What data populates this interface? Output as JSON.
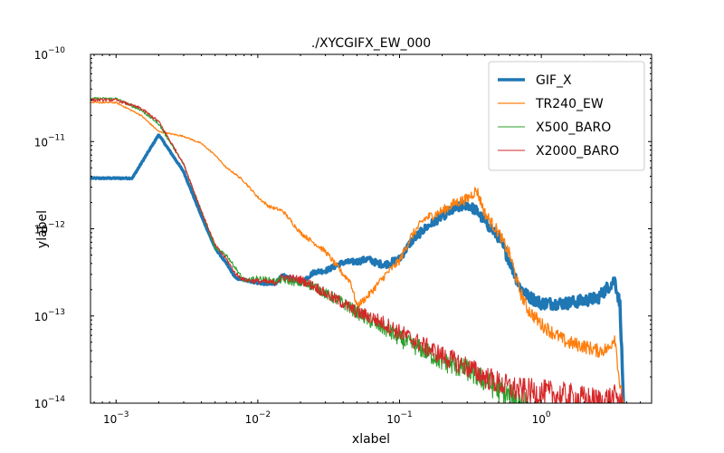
{
  "chart_data": {
    "type": "line",
    "title": "./XYCGIFX_EW_000",
    "xlabel": "xlabel",
    "ylabel": "ylabel",
    "xscale": "log",
    "yscale": "log",
    "xlim": [
      0.00066,
      6
    ],
    "ylim": [
      1e-14,
      1e-10
    ],
    "grid": false,
    "legend_loc": "upper right",
    "x_ticks": [
      {
        "value": 0.001,
        "base": "10",
        "exp": "−3"
      },
      {
        "value": 0.01,
        "base": "10",
        "exp": "−2"
      },
      {
        "value": 0.1,
        "base": "10",
        "exp": "−1"
      },
      {
        "value": 1,
        "base": "10",
        "exp": "0"
      }
    ],
    "y_ticks": [
      {
        "value": 1e-14,
        "base": "10",
        "exp": "−14"
      },
      {
        "value": 1e-13,
        "base": "10",
        "exp": "−13"
      },
      {
        "value": 1e-12,
        "base": "10",
        "exp": "−12"
      },
      {
        "value": 1e-11,
        "base": "10",
        "exp": "−11"
      },
      {
        "value": 1e-10,
        "base": "10",
        "exp": "−10"
      }
    ],
    "series": [
      {
        "name": "GIF_X",
        "color": "#1f77b4",
        "width": 3.5,
        "noise": 0.07,
        "x": [
          0.00066,
          0.001,
          0.0013,
          0.002,
          0.003,
          0.004,
          0.005,
          0.006,
          0.007,
          0.008,
          0.01,
          0.013,
          0.015,
          0.02,
          0.025,
          0.03,
          0.04,
          0.05,
          0.06,
          0.07,
          0.08,
          0.1,
          0.12,
          0.15,
          0.2,
          0.25,
          0.3,
          0.35,
          0.4,
          0.5,
          0.6,
          0.7,
          0.8,
          1.0,
          1.5,
          2.0,
          2.5,
          3.0,
          3.3,
          3.6,
          3.8
        ],
        "y": [
          3.8e-12,
          3.8e-12,
          3.8e-12,
          1.2e-11,
          4.5e-12,
          1.4e-12,
          6e-13,
          4e-13,
          2.7e-13,
          2.6e-13,
          2.4e-13,
          2.3e-13,
          2.9e-13,
          2.4e-13,
          3.2e-13,
          3.3e-13,
          4.1e-13,
          4.2e-13,
          4.5e-13,
          4e-13,
          3.9e-13,
          4.5e-13,
          7e-13,
          1e-12,
          1.4e-12,
          1.7e-12,
          1.9e-12,
          1.6e-12,
          1.2e-12,
          8e-13,
          4.2e-13,
          2.2e-13,
          1.7e-13,
          1.4e-13,
          1.4e-13,
          1.5e-13,
          1.6e-13,
          2.2e-13,
          2.6e-13,
          1.3e-13,
          1e-14
        ]
      },
      {
        "name": "TR240_EW",
        "color": "#ff7f0e",
        "width": 1.3,
        "noise": 0.08,
        "x": [
          0.00066,
          0.001,
          0.0015,
          0.002,
          0.003,
          0.004,
          0.005,
          0.006,
          0.007,
          0.008,
          0.01,
          0.012,
          0.015,
          0.02,
          0.03,
          0.04,
          0.045,
          0.05,
          0.06,
          0.08,
          0.1,
          0.12,
          0.15,
          0.2,
          0.25,
          0.3,
          0.35,
          0.4,
          0.5,
          0.6,
          0.7,
          0.8,
          1.0,
          1.5,
          2.0,
          2.5,
          3.0,
          3.3,
          3.6,
          3.8
        ],
        "y": [
          2.8e-11,
          2.8e-11,
          2e-11,
          1.3e-11,
          1.15e-11,
          9.5e-12,
          7e-12,
          5e-12,
          4.2e-12,
          3.5e-12,
          2.3e-12,
          1.8e-12,
          1.6e-12,
          9e-13,
          5.5e-13,
          3e-13,
          2.5e-13,
          1.3e-13,
          1.7e-13,
          3e-13,
          4.3e-13,
          8e-13,
          1.3e-12,
          1.6e-12,
          2e-12,
          2.2e-12,
          2.8e-12,
          1.5e-12,
          9e-13,
          5e-13,
          2e-13,
          1.2e-13,
          8e-14,
          5e-14,
          4.5e-14,
          4e-14,
          4.2e-14,
          6e-14,
          1.5e-14,
          1e-14
        ]
      },
      {
        "name": "X500_BARO",
        "color": "#2ca02c",
        "width": 1.1,
        "noise": 0.16,
        "x": [
          0.00066,
          0.001,
          0.0015,
          0.002,
          0.003,
          0.004,
          0.005,
          0.006,
          0.007,
          0.008,
          0.01,
          0.013,
          0.015,
          0.02,
          0.025,
          0.03,
          0.04,
          0.05,
          0.06,
          0.08,
          0.1,
          0.15,
          0.2,
          0.3,
          0.4,
          0.5,
          0.6,
          0.7,
          0.8
        ],
        "y": [
          3.1e-11,
          3.1e-11,
          2.3e-11,
          1.6e-11,
          5.5e-12,
          1.6e-12,
          6e-13,
          5e-13,
          3.5e-13,
          2.5e-13,
          2.7e-13,
          2.5e-13,
          2.6e-13,
          2.4e-13,
          2.2e-13,
          1.8e-13,
          1.4e-13,
          1.1e-13,
          9e-14,
          7e-14,
          5.5e-14,
          4e-14,
          3e-14,
          2.4e-14,
          1.8e-14,
          1.4e-14,
          1.2e-14,
          1.05e-14,
          1e-14
        ]
      },
      {
        "name": "X2000_BARO",
        "color": "#d62728",
        "width": 1.1,
        "noise": 0.16,
        "x": [
          0.00066,
          0.001,
          0.0015,
          0.002,
          0.003,
          0.004,
          0.005,
          0.006,
          0.007,
          0.008,
          0.01,
          0.013,
          0.015,
          0.02,
          0.025,
          0.03,
          0.04,
          0.05,
          0.06,
          0.08,
          0.1,
          0.15,
          0.2,
          0.3,
          0.4,
          0.5,
          0.6,
          0.7,
          1.0,
          1.5,
          2.0,
          2.5,
          3.0,
          3.5,
          3.8
        ],
        "y": [
          3e-11,
          3e-11,
          2.4e-11,
          1.7e-11,
          5.5e-12,
          1.6e-12,
          6.5e-13,
          4.5e-13,
          3e-13,
          2.6e-13,
          2.5e-13,
          2.4e-13,
          2.8e-13,
          2.6e-13,
          2.2e-13,
          1.8e-13,
          1.4e-13,
          1.1e-13,
          1e-13,
          8e-14,
          6.5e-14,
          4.5e-14,
          3.5e-14,
          2.6e-14,
          2e-14,
          1.7e-14,
          1.5e-14,
          1.4e-14,
          1.3e-14,
          1.2e-14,
          1.1e-14,
          1.05e-14,
          1.1e-14,
          1.15e-14,
          1e-14
        ]
      }
    ]
  }
}
